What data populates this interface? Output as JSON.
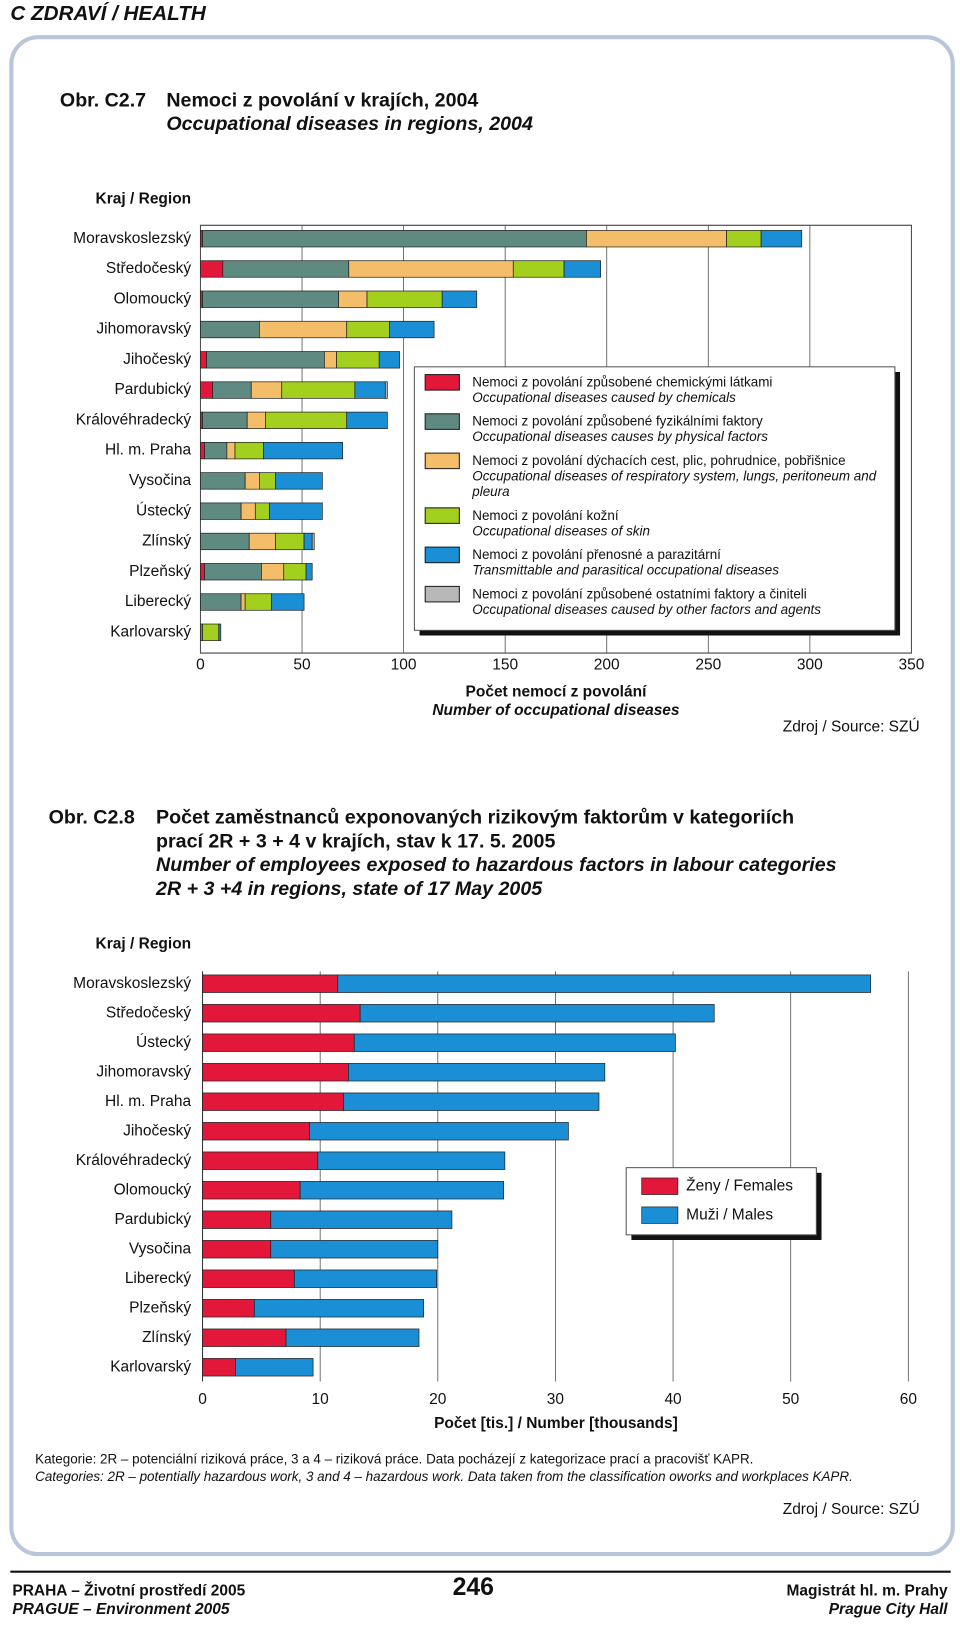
{
  "header": {
    "section": "C ZDRAVÍ / HEALTH"
  },
  "chart_data": [
    {
      "type": "bar",
      "orientation": "horizontal",
      "stacked": true,
      "figure_label": "Obr. C2.7",
      "title": "Nemoci z povolání v krajích, 2004",
      "subtitle": "Occupational diseases in regions, 2004",
      "y_label": "Kraj / Region",
      "x_label": "Počet nemocí z povolání",
      "x_label_en": "Number of occupational diseases",
      "source": "Zdroj / Source: SZÚ",
      "xlim": [
        0,
        350
      ],
      "xticks": [
        0,
        50,
        100,
        150,
        200,
        250,
        300,
        350
      ],
      "grid": true,
      "categories": [
        "Moravskoslezský",
        "Středočeský",
        "Olomoucký",
        "Jihomoravský",
        "Jihočeský",
        "Pardubický",
        "Královéhradecký",
        "Hl. m. Praha",
        "Vysočina",
        "Ústecký",
        "Zlínský",
        "Plzeňský",
        "Liberecký",
        "Karlovarský"
      ],
      "series": [
        {
          "name": "Nemoci z povolání způsobené chemickými látkami",
          "name_en": "Occupational diseases caused by chemicals",
          "color": "#e3173a",
          "values": [
            1,
            11,
            1,
            0,
            3,
            6,
            1,
            2,
            0,
            0,
            0,
            2,
            0,
            0
          ]
        },
        {
          "name": "Nemoci z povolání způsobené fyzikálními faktory",
          "name_en": "Occupational diseases causes by physical factors",
          "color": "#5f8a82",
          "values": [
            189,
            62,
            67,
            29,
            58,
            19,
            22,
            11,
            22,
            20,
            24,
            28,
            20,
            1
          ]
        },
        {
          "name": "Nemoci z povolání dýchacích cest, plic, pohrudnice, pobřišnice",
          "name_en": "Occupational diseases of respiratory system, lungs, peritoneum and pleura",
          "color": "#f4bd6a",
          "values": [
            69,
            81,
            14,
            43,
            6,
            15,
            9,
            4,
            7,
            7,
            13,
            11,
            2,
            0
          ]
        },
        {
          "name": "Nemoci z povolání kožní",
          "name_en": "Occupational diseases of skin",
          "color": "#a3cf1e",
          "values": [
            17,
            25,
            37,
            21,
            21,
            36,
            40,
            14,
            8,
            7,
            14,
            11,
            13,
            8
          ]
        },
        {
          "name": "Nemoci z povolání přenosné a parazitární",
          "name_en": "Transmittable and parasitical occupational diseases",
          "color": "#1a8fd6",
          "values": [
            20,
            18,
            17,
            22,
            10,
            15,
            20,
            39,
            23,
            26,
            4,
            3,
            16,
            1
          ]
        },
        {
          "name": "Nemoci z povolání způsobené ostatními faktory a činiteli",
          "name_en": "Occupational diseases caused by other factors and agents",
          "color": "#b8b8b8",
          "values": [
            0,
            0,
            0,
            0,
            0,
            1,
            0,
            0,
            0,
            0,
            1,
            0,
            0,
            0
          ]
        }
      ]
    },
    {
      "type": "bar",
      "orientation": "horizontal",
      "stacked": true,
      "figure_label": "Obr. C2.8",
      "title": [
        "Počet zaměstnanců exponovaných rizikovým faktorům v kategoriích",
        "prací 2R + 3 + 4 v krajích, stav k 17. 5. 2005"
      ],
      "subtitle": [
        "Number of employees exposed to hazardous factors in labour categories",
        "2R + 3 +4 in regions, state of 17 May 2005"
      ],
      "y_label": "Kraj / Region",
      "x_label": "Počet [tis.] / Number [thousands]",
      "source": "Zdroj / Source: SZÚ",
      "xlim": [
        0,
        60
      ],
      "xticks": [
        0,
        10,
        20,
        30,
        40,
        50,
        60
      ],
      "grid": true,
      "categories": [
        "Moravskoslezský",
        "Středočeský",
        "Ústecký",
        "Jihomoravský",
        "Hl. m. Praha",
        "Jihočeský",
        "Královéhradecký",
        "Olomoucký",
        "Pardubický",
        "Vysočina",
        "Liberecký",
        "Plzeňský",
        "Zlínský",
        "Karlovarský"
      ],
      "series": [
        {
          "name": "Ženy / Females",
          "color": "#e3173a",
          "values": [
            11.5,
            13.4,
            12.9,
            12.4,
            12.0,
            9.1,
            9.8,
            8.3,
            5.8,
            5.8,
            7.8,
            4.4,
            7.1,
            2.8
          ]
        },
        {
          "name": "Muži / Males",
          "color": "#1a8fd6",
          "values": [
            45.3,
            30.1,
            27.3,
            21.8,
            21.7,
            22.0,
            15.9,
            17.3,
            15.4,
            14.2,
            12.1,
            14.4,
            11.3,
            6.6
          ]
        }
      ]
    }
  ],
  "notes": [
    "Kategorie: 2R – potenciální riziková práce, 3 a 4 – riziková práce. Data pocházejí z kategorizace prací a pracovišť KAPR.",
    "Categories: 2R – potentially hazardous work, 3 and 4 – hazardous work. Data taken from the classification oworks and workplaces KAPR."
  ],
  "footer": {
    "left": "PRAHA – Životní prostředí 2005",
    "left_en": "PRAGUE – Environment 2005",
    "page": "246",
    "right": "Magistrát hl. m. Prahy",
    "right_en": "Prague City Hall"
  }
}
